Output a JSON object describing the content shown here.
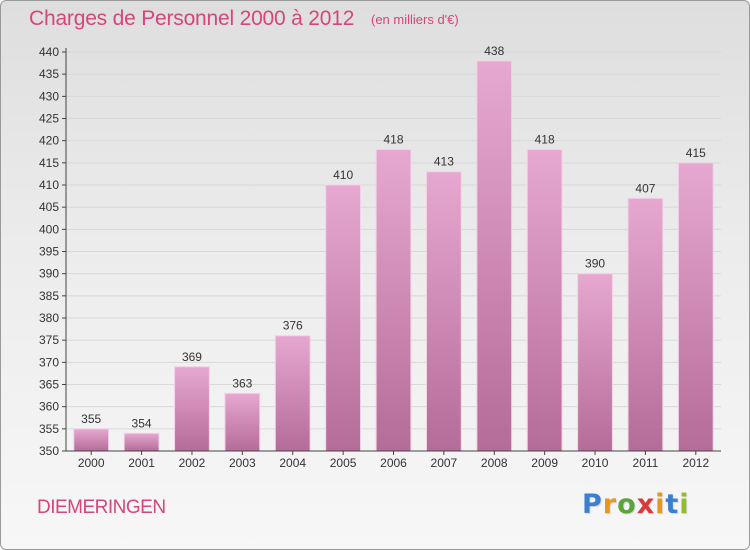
{
  "header": {
    "title": "Charges de Personnel 2000 à 2012",
    "subtitle": "(en milliers d'€)"
  },
  "footer": {
    "commune": "DIEMERINGEN",
    "logo_letters": [
      "P",
      "r",
      "o",
      "x",
      "i",
      "t",
      "i"
    ],
    "logo_colors": [
      "#3b7fd0",
      "#e9971b",
      "#5ba437",
      "#d63a3a",
      "#e9971b",
      "#3b7fd0",
      "#8fbe2a"
    ]
  },
  "colors": {
    "bar_top": "#e6a8d0",
    "bar_bottom": "#b46c98",
    "bar_edge": "#f3d2e6",
    "grid": "#d8d8d8",
    "axis": "#444444",
    "text": "#333333",
    "accent": "#d4467c"
  },
  "chart_data": {
    "type": "bar",
    "categories": [
      "2000",
      "2001",
      "2002",
      "2003",
      "2004",
      "2005",
      "2006",
      "2007",
      "2008",
      "2009",
      "2010",
      "2011",
      "2012"
    ],
    "values": [
      355,
      354,
      369,
      363,
      376,
      410,
      418,
      413,
      438,
      418,
      390,
      407,
      415
    ],
    "title": "Charges de Personnel 2000 à 2012",
    "subtitle": "(en milliers d'€)",
    "ylim": [
      350,
      440
    ],
    "ytick_step": 5,
    "grid": true,
    "legend": "none",
    "data_labels": true
  }
}
